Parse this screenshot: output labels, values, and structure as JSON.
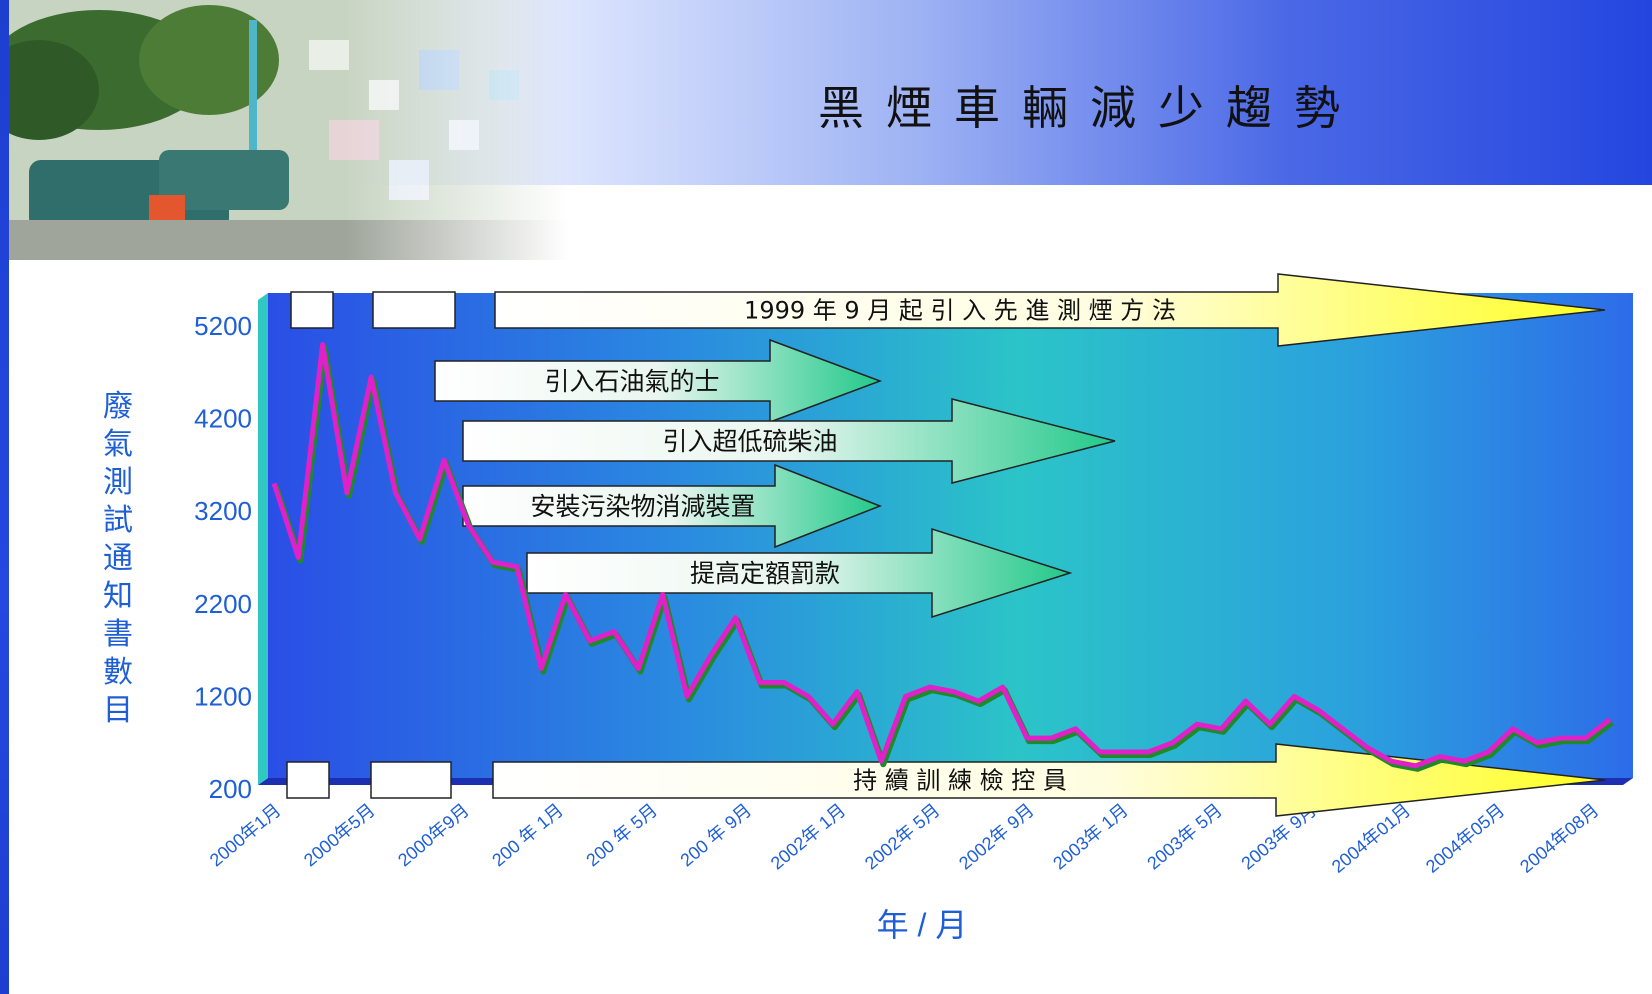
{
  "title": "黑煙車輛減少趨勢",
  "colors": {
    "plot_bg_left": "#2a4ee6",
    "plot_bg_right": "#2d6ce9",
    "line_magenta": "#e020c8",
    "line_green": "#1f8a2a",
    "axis_text": "#1f5fd6",
    "arrow_yellow": "#ffff33",
    "arrow_green": "#2ecf8a"
  },
  "chart_data": {
    "type": "line",
    "title": "黑煙車輛減少趨勢",
    "xlabel": "年 / 月",
    "ylabel": "廢氣測試通知書數目",
    "ylim": [
      200,
      5200
    ],
    "yticks": [
      "5200",
      "4200",
      "3200",
      "2200",
      "1200",
      "200"
    ],
    "xticks": [
      "2000年1月",
      "2000年5月",
      "2000年9月",
      "200 年 1月",
      "200 年 5月",
      "200 年 9月",
      "2002年 1月",
      "2002年 5月",
      "2002年 9月",
      "2003年 1月",
      "2003年 5月",
      "2003年 9月",
      "2004年01月",
      "2004年05月",
      "2004年08月"
    ],
    "series": [
      {
        "values": [
          3500,
          2700,
          5000,
          3400,
          4650,
          3400,
          2900,
          3750,
          3050,
          2650,
          2600,
          1500,
          2300,
          1800,
          1900,
          1500,
          2300,
          1200,
          1650,
          2050,
          1350,
          1350,
          1200,
          900,
          1250,
          500,
          1200,
          1300,
          1250,
          1150,
          1300,
          750,
          750,
          850,
          600,
          600,
          600,
          700,
          900,
          850,
          1150,
          900,
          1200,
          1050,
          850,
          650,
          500,
          450,
          550,
          500,
          600,
          850,
          700,
          750,
          750,
          950
        ]
      }
    ],
    "annotations": [
      "1999 年 9 月 起 引 入 先 進 測 煙 方 法",
      "引入石油氣的士",
      "引入超低硫柴油",
      "安裝污染物消減裝置",
      "提高定額罰款",
      "持 續 訓 練 檢 控 員"
    ]
  }
}
